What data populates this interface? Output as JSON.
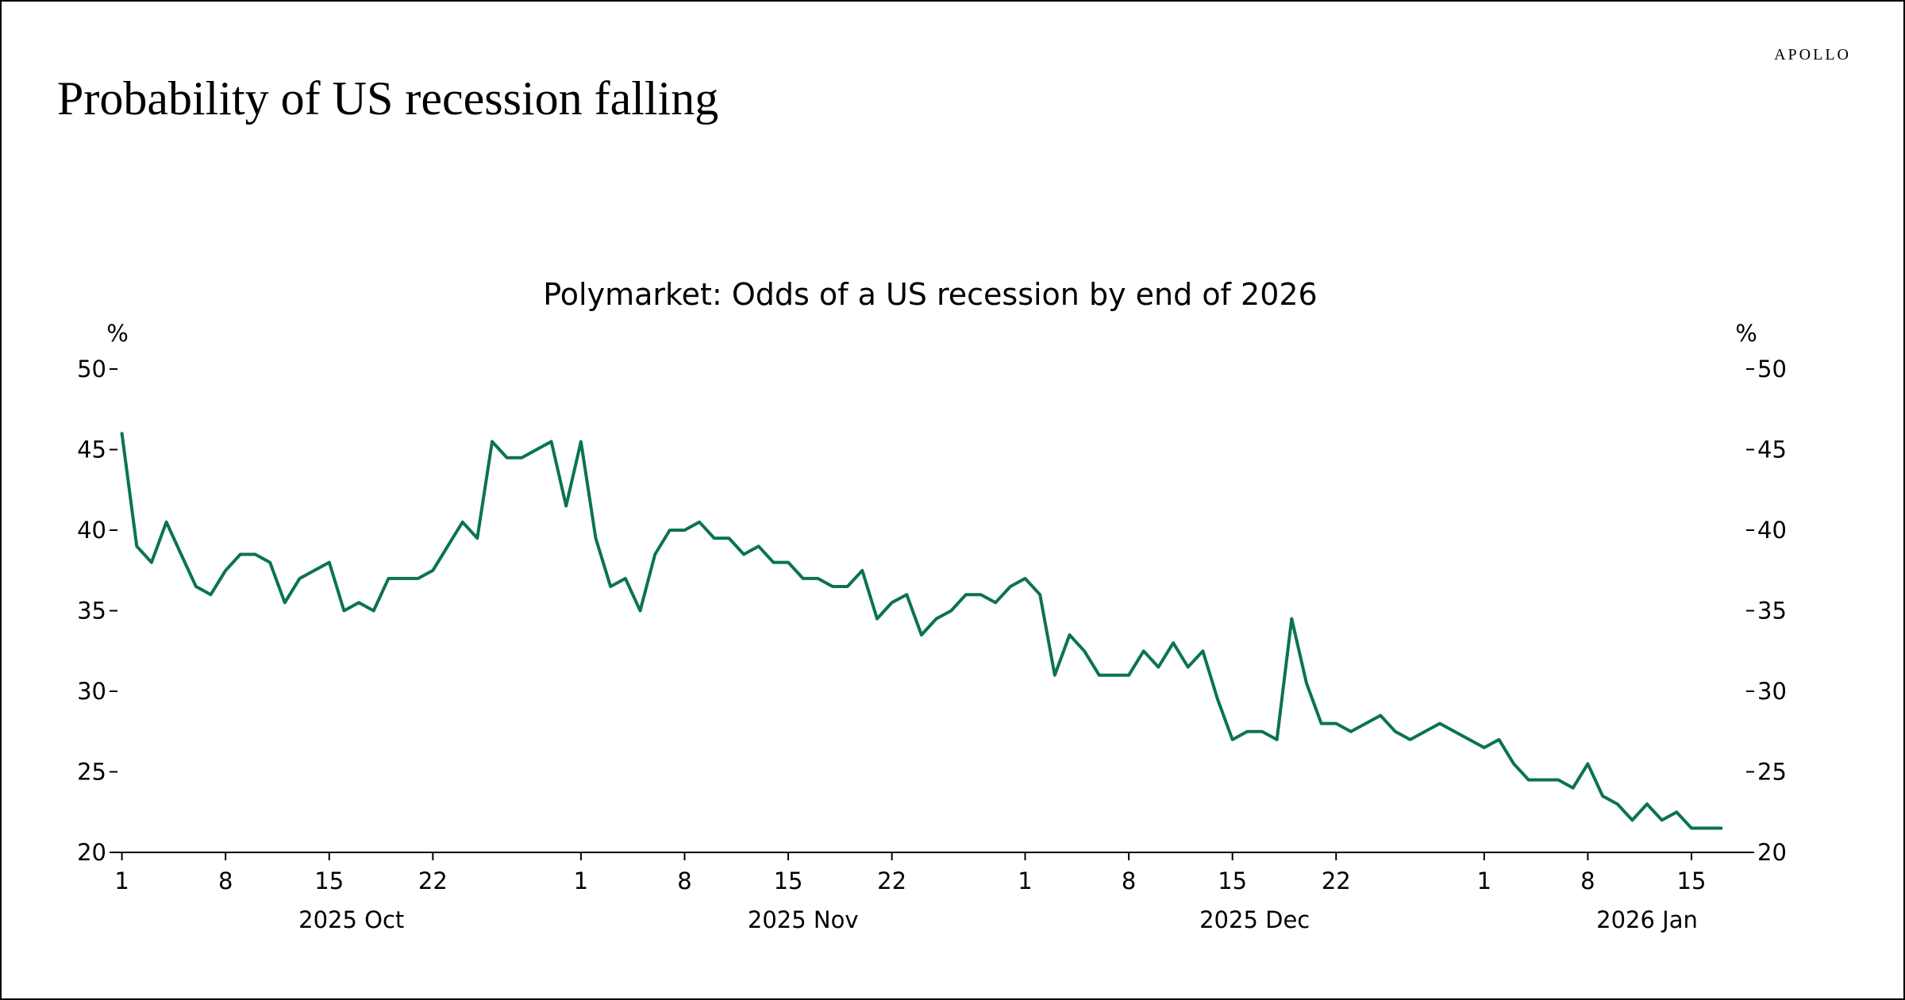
{
  "brand": "APOLLO",
  "headline": "Probability of US recession falling",
  "chart_data": {
    "type": "line",
    "title": "Polymarket: Odds of a US recession by end of 2026",
    "ylabel_left": "%",
    "ylabel_right": "%",
    "ylim": [
      20,
      50
    ],
    "yticks": [
      20,
      25,
      30,
      35,
      40,
      45,
      50
    ],
    "color": "#0b7352",
    "xlim": [
      0.7,
      110.7
    ],
    "xticks": [
      {
        "x": 1,
        "label": "1"
      },
      {
        "x": 8,
        "label": "8"
      },
      {
        "x": 15,
        "label": "15"
      },
      {
        "x": 22,
        "label": "22"
      },
      {
        "x": 32,
        "label": "1"
      },
      {
        "x": 39,
        "label": "8"
      },
      {
        "x": 46,
        "label": "15"
      },
      {
        "x": 53,
        "label": "22"
      },
      {
        "x": 62,
        "label": "1"
      },
      {
        "x": 69,
        "label": "8"
      },
      {
        "x": 76,
        "label": "15"
      },
      {
        "x": 83,
        "label": "22"
      },
      {
        "x": 93,
        "label": "1"
      },
      {
        "x": 100,
        "label": "8"
      },
      {
        "x": 107,
        "label": "15"
      }
    ],
    "month_labels": [
      {
        "x": 16.5,
        "label": "2025 Oct"
      },
      {
        "x": 47,
        "label": "2025 Nov"
      },
      {
        "x": 77.5,
        "label": "2025 Dec"
      },
      {
        "x": 104,
        "label": "2026 Jan"
      }
    ],
    "series": [
      {
        "name": "Odds of a US recession by end of 2026",
        "x": [
          1,
          2,
          3,
          4,
          5,
          6,
          7,
          8,
          9,
          10,
          11,
          12,
          13,
          14,
          15,
          16,
          17,
          18,
          19,
          20,
          21,
          22,
          23,
          24,
          25,
          26,
          27,
          28,
          29,
          30,
          31,
          32,
          33,
          34,
          35,
          36,
          37,
          38,
          39,
          40,
          41,
          42,
          43,
          44,
          45,
          46,
          47,
          48,
          49,
          50,
          51,
          52,
          53,
          54,
          55,
          56,
          57,
          58,
          59,
          60,
          61,
          62,
          63,
          64,
          65,
          66,
          67,
          68,
          69,
          70,
          71,
          72,
          73,
          74,
          75,
          76,
          77,
          78,
          79,
          80,
          81,
          82,
          83,
          84,
          85,
          86,
          87,
          88,
          89,
          90,
          91,
          92,
          93,
          94,
          95,
          96,
          97,
          98,
          99,
          100,
          101,
          102,
          103,
          104,
          105,
          106,
          107,
          108,
          109
        ],
        "values": [
          46,
          39,
          38,
          40.5,
          38.5,
          36.5,
          36,
          37.5,
          38.5,
          38.5,
          38,
          35.5,
          37,
          37.5,
          38,
          35,
          35.5,
          35,
          37,
          37,
          37,
          37.5,
          39,
          40.5,
          39.5,
          45.5,
          44.5,
          44.5,
          45,
          45.5,
          41.5,
          45.5,
          39.5,
          36.5,
          37,
          35,
          38.5,
          40,
          40,
          40.5,
          39.5,
          39.5,
          38.5,
          39,
          38,
          38,
          37,
          37,
          36.5,
          36.5,
          37.5,
          34.5,
          35.5,
          36,
          33.5,
          34.5,
          35,
          36,
          36,
          35.5,
          36.5,
          37,
          36,
          31,
          33.5,
          32.5,
          31,
          31,
          31,
          32.5,
          31.5,
          33,
          31.5,
          32.5,
          29.5,
          27,
          27.5,
          27.5,
          27,
          34.5,
          30.5,
          28,
          28,
          27.5,
          28,
          28.5,
          27.5,
          27,
          27.5,
          28,
          27.5,
          27,
          26.5,
          27,
          25.5,
          24.5,
          24.5,
          24.5,
          24,
          25.5,
          23.5,
          23,
          22,
          23,
          22,
          22.5,
          21.5,
          21.5,
          21.5
        ]
      }
    ]
  }
}
